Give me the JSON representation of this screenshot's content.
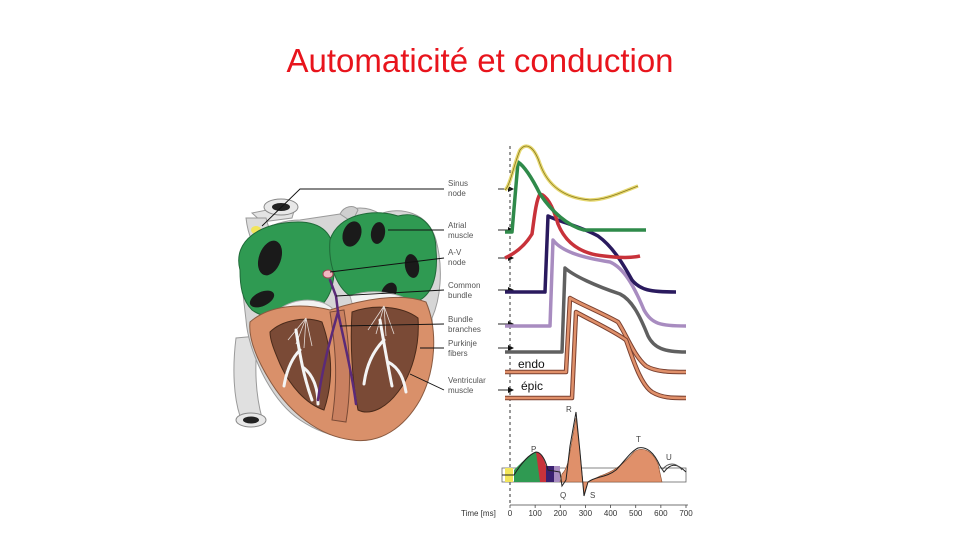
{
  "slide": {
    "title": "Automaticité et conduction"
  },
  "structures": [
    {
      "line1": "Sinus",
      "line2": "node"
    },
    {
      "line1": "Atrial",
      "line2": "muscle"
    },
    {
      "line1": "A-V",
      "line2": "node"
    },
    {
      "line1": "Common",
      "line2": "bundle"
    },
    {
      "line1": "Bundle",
      "line2": "branches"
    },
    {
      "line1": "Purkinje",
      "line2": "fibers"
    },
    {
      "line1": "Ventricular",
      "line2": "muscle"
    }
  ],
  "ventricle_labels": {
    "endo": "endo",
    "epic": "épic"
  },
  "ecg": {
    "P": "P",
    "Q": "Q",
    "R": "R",
    "S": "S",
    "T": "T",
    "U": "U"
  },
  "time_axis": {
    "label": "Time [ms]",
    "ticks": [
      "0",
      "100",
      "200",
      "300",
      "400",
      "500",
      "600",
      "700"
    ]
  },
  "colors": {
    "title": "#e8141c",
    "sinus": "#e6d870",
    "atrial": "#2f8a4a",
    "av": "#c8323a",
    "common": "#2a1a5e",
    "bundle": "#a88cc0",
    "purkinje": "#606060",
    "ventricular": "#e0906a",
    "heart_green": "#2f9a52",
    "heart_muscle": "#d9906a"
  }
}
